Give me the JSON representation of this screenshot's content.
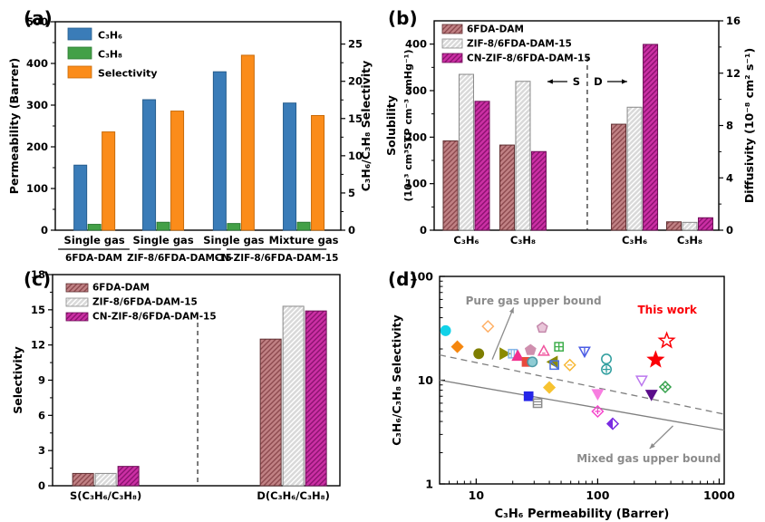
{
  "figure": {
    "bg": "#ffffff",
    "panel_labels": {
      "a": "(a)",
      "b": "(b)",
      "c": "(c)",
      "d": "(d)"
    }
  },
  "chart_data": [
    {
      "id": "a",
      "type": "bar",
      "left_axis": {
        "label": "Permeability (Barrer)",
        "min": 0,
        "max": 500,
        "major": 100,
        "minor": 50,
        "last_tick": 500
      },
      "right_axis": {
        "label": "C₃H₆/C₃H₈ Selectivity",
        "min": 0,
        "max": 28,
        "major": 5,
        "minor": 2.5,
        "last_tick": 25
      },
      "categories": [
        {
          "fx": 0.137,
          "label": "Single gas"
        },
        {
          "fx": 0.378,
          "label": "Single gas"
        },
        {
          "fx": 0.625,
          "label": "Single gas"
        },
        {
          "fx": 0.87,
          "label": "Mixture gas"
        }
      ],
      "materials": [
        {
          "text": "6FDA-DAM",
          "line_fx": [
            0.01,
            0.26
          ]
        },
        {
          "text": "ZIF-8/6FDA-DAM-15",
          "line_fx": [
            0.29,
            0.58
          ]
        },
        {
          "text": "CN-ZIF-8/6FDA-DAM-15",
          "line_fx": [
            0.6,
            0.95
          ]
        }
      ],
      "series": [
        {
          "name": "C₃H₆",
          "axis": "left",
          "fill": "#3a7cb8",
          "edge": "#265d8d",
          "values": [
            156,
            313,
            380,
            305
          ]
        },
        {
          "name": "C₃H₈",
          "axis": "left",
          "fill": "#43a047",
          "edge": "#2c7a33",
          "values": [
            14,
            19,
            16,
            19
          ]
        },
        {
          "name": "Selectivity",
          "axis": "right",
          "fill": "#fb8c1a",
          "edge": "#c96a08",
          "values": [
            13.2,
            16.0,
            23.5,
            15.4
          ]
        }
      ]
    },
    {
      "id": "b",
      "type": "bar",
      "left_axis": {
        "label1": "Solubility",
        "label2": "(10⁻³ cm³STP cm⁻³ cmHg⁻¹)",
        "min": 0,
        "max": 450,
        "major": 100,
        "minor": 50,
        "last_tick": 400
      },
      "right_axis": {
        "label": "Diffusivity (10⁻⁸ cm² s⁻¹)",
        "min": 0,
        "max": 16,
        "major": 4,
        "minor": 2,
        "last_tick": 16
      },
      "categories": [
        {
          "fx": 0.113,
          "label": "C₃H₆",
          "axis": "left"
        },
        {
          "fx": 0.312,
          "label": "C₃H₈",
          "axis": "left"
        },
        {
          "fx": 0.704,
          "label": "C₃H₆",
          "axis": "right"
        },
        {
          "fx": 0.898,
          "label": "C₃H₈",
          "axis": "right"
        }
      ],
      "divider": {
        "fx": 0.538,
        "label_left": "S",
        "label_right": "D"
      },
      "series": [
        {
          "name": "6FDA-DAM",
          "fill": "#c08184",
          "hatch": "#8d4a4f",
          "edge": "#5f3032",
          "values": [
            192,
            183,
            8.1,
            0.64
          ]
        },
        {
          "name": "ZIF-8/6FDA-DAM-15",
          "fill": "#d9d9d9",
          "hatch": "#ffffff",
          "edge": "#8a8a8a",
          "values": [
            335,
            320,
            9.4,
            0.6
          ]
        },
        {
          "name": "CN-ZIF-8/6FDA-DAM-15",
          "fill": "#cb2fa4",
          "hatch": "#8c1370",
          "edge": "#6e0f58",
          "values": [
            277,
            169,
            14.2,
            0.95
          ]
        }
      ]
    },
    {
      "id": "c",
      "type": "bar",
      "left_axis": {
        "label": "Selectivity",
        "min": 0,
        "max": 18,
        "major": 3,
        "minor": 1.5,
        "last_tick": 18
      },
      "categories": [
        {
          "fx": 0.185,
          "label": "S(C₃H₆/C₃H₈)",
          "axis": "left"
        },
        {
          "fx": 0.838,
          "label": "D(C₃H₆/C₃H₈)",
          "axis": "left"
        }
      ],
      "divider": {
        "fx": 0.505
      },
      "series": [
        {
          "name": "6FDA-DAM",
          "fill": "#c08184",
          "hatch": "#8d4a4f",
          "edge": "#5f3032",
          "values": [
            1.05,
            12.5
          ]
        },
        {
          "name": "ZIF-8/6FDA-DAM-15",
          "fill": "#d9d9d9",
          "hatch": "#ffffff",
          "edge": "#8a8a8a",
          "values": [
            1.05,
            15.3
          ]
        },
        {
          "name": "CN-ZIF-8/6FDA-DAM-15",
          "fill": "#cb2fa4",
          "hatch": "#8c1370",
          "edge": "#6e0f58",
          "values": [
            1.65,
            14.9
          ]
        }
      ]
    },
    {
      "id": "d",
      "type": "scatter",
      "xlabel": "C₃H₆ Permeability (Barrer)",
      "ylabel": "C₃H₆/C₃H₈ Selectivity",
      "xlog": true,
      "ylog": true,
      "xlim": [
        5,
        1100
      ],
      "ylim": [
        1,
        100
      ],
      "x_major_ticks": [
        10,
        100,
        1000
      ],
      "y_major_ticks": [
        1,
        10,
        100
      ],
      "bounds": [
        {
          "name": "Pure gas upper bound",
          "style": "dashed",
          "color": "#7f7f7f",
          "p1": [
            5,
            17.5
          ],
          "p2": [
            1100,
            4.7
          ]
        },
        {
          "name": "Mixed gas upper bound",
          "style": "solid",
          "color": "#7f7f7f",
          "p1": [
            5,
            10.0
          ],
          "p2": [
            1100,
            3.3
          ]
        }
      ],
      "annotations": [
        {
          "text": "Pure gas upper bound",
          "color": "#8c8c8c",
          "fx": 0.33,
          "fy": 0.135,
          "arrow": [
            0.185,
            0.4,
            0.26,
            0.15
          ]
        },
        {
          "text": "Mixed gas upper bound",
          "color": "#8c8c8c",
          "fx": 0.735,
          "fy": 0.895,
          "arrow": [
            0.82,
            0.72,
            0.738,
            0.83
          ]
        },
        {
          "text": "This work",
          "color": "#fb0007",
          "fx": 0.8,
          "fy": 0.18
        }
      ],
      "points": [
        {
          "x": 5.6,
          "y": 30,
          "m": "circle",
          "c": "#12d2e8",
          "f": true
        },
        {
          "x": 7,
          "y": 21,
          "m": "diamond",
          "c": "#f5870f",
          "f": true
        },
        {
          "x": 12.5,
          "y": 33,
          "m": "diamond",
          "c": "#ffb066",
          "f": false
        },
        {
          "x": 10.5,
          "y": 18,
          "m": "circle",
          "c": "#7e7e00",
          "f": true
        },
        {
          "x": 17,
          "y": 18,
          "m": "tri-right",
          "c": "#8b8b00",
          "f": true
        },
        {
          "x": 20,
          "y": 18,
          "m": "square-vlines",
          "c": "#85b7e8",
          "f": false
        },
        {
          "x": 22,
          "y": 17,
          "m": "tri-up",
          "c": "#f2308f",
          "f": true
        },
        {
          "x": 26,
          "y": 15,
          "m": "square",
          "c": "#e84a3d",
          "f": true
        },
        {
          "x": 29,
          "y": 15,
          "m": "circle",
          "c": "#8fccd4",
          "f": true,
          "e": "#4d9aa6"
        },
        {
          "x": 28,
          "y": 19.5,
          "m": "pentagon",
          "c": "#cf8fae",
          "f": true
        },
        {
          "x": 35,
          "y": 32,
          "m": "pentagon",
          "c": "#e9c6d9",
          "f": true,
          "e": "#c488ab"
        },
        {
          "x": 36,
          "y": 19,
          "m": "tri-up-dash",
          "c": "#f0549e",
          "f": false
        },
        {
          "x": 43,
          "y": 15,
          "m": "tri-left",
          "c": "#8b8b00",
          "f": true
        },
        {
          "x": 44,
          "y": 14,
          "m": "square-diag",
          "c": "#4a6fe3",
          "f": false
        },
        {
          "x": 48,
          "y": 21,
          "m": "square-grid",
          "c": "#3fae4c",
          "f": false
        },
        {
          "x": 59,
          "y": 14,
          "m": "diamond-dash",
          "c": "#f7b733",
          "f": false
        },
        {
          "x": 78,
          "y": 19,
          "m": "tri-down-line",
          "c": "#4b5ce4",
          "f": false
        },
        {
          "x": 118,
          "y": 16,
          "m": "circle",
          "c": "#2f9e9e",
          "f": false
        },
        {
          "x": 118,
          "y": 12.7,
          "m": "circle-plus",
          "c": "#2f9e9e",
          "f": false
        },
        {
          "x": 40,
          "y": 8.5,
          "m": "diamond",
          "c": "#f7c331",
          "f": true
        },
        {
          "x": 27,
          "y": 7,
          "m": "square",
          "c": "#2525e8",
          "f": true
        },
        {
          "x": 32,
          "y": 6,
          "m": "square-hlines",
          "c": "#8c8c8c",
          "f": false
        },
        {
          "x": 100,
          "y": 7.4,
          "m": "tri-down",
          "c": "#f77ee0",
          "f": true
        },
        {
          "x": 100,
          "y": 5,
          "m": "diamond-plus",
          "c": "#f545cb",
          "f": false
        },
        {
          "x": 133,
          "y": 3.8,
          "m": "diamond-half",
          "c": "#7a2be2",
          "f": false
        },
        {
          "x": 230,
          "y": 10,
          "m": "tri-down",
          "c": "#bb77ee",
          "f": false
        },
        {
          "x": 277,
          "y": 7.3,
          "m": "tri-down",
          "c": "#5a0d8a",
          "f": true
        },
        {
          "x": 360,
          "y": 8.6,
          "m": "diamond-x",
          "c": "#33a04a",
          "f": false
        },
        {
          "x": 300,
          "y": 15.7,
          "m": "star",
          "c": "#fb0007",
          "f": true
        },
        {
          "x": 370,
          "y": 24,
          "m": "star",
          "c": "#fb0007",
          "f": false
        }
      ]
    }
  ]
}
